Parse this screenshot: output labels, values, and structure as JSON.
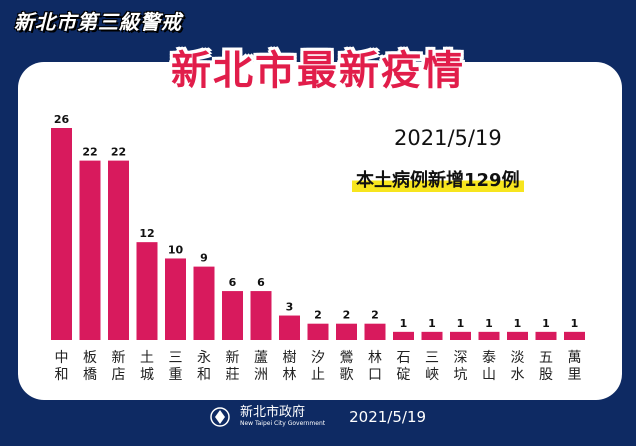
{
  "banner": {
    "alert_title": "新北市第三級警戒"
  },
  "header": {
    "headline": "新北市最新疫情"
  },
  "summary": {
    "date": "2021/5/19",
    "new_cases": "本土病例新增129例"
  },
  "footer": {
    "org_name": "新北市政府",
    "org_name_en": "New Taipei City Government",
    "date": "2021/5/19"
  },
  "colors": {
    "bar": "#d81a5d",
    "background": "#0e2a63",
    "highlight": "#f7e51e",
    "headline": "#e11d4a"
  },
  "chart_data": {
    "type": "bar",
    "categories": [
      "中和",
      "板橋",
      "新店",
      "土城",
      "三重",
      "永和",
      "新莊",
      "蘆洲",
      "樹林",
      "汐止",
      "鶯歌",
      "林口",
      "石碇",
      "三峽",
      "深坑",
      "泰山",
      "淡水",
      "五股",
      "萬里"
    ],
    "values": [
      26,
      22,
      22,
      12,
      10,
      9,
      6,
      6,
      3,
      2,
      2,
      2,
      1,
      1,
      1,
      1,
      1,
      1,
      1
    ],
    "ylim": [
      0,
      26
    ],
    "grid": false,
    "legend": "none"
  }
}
